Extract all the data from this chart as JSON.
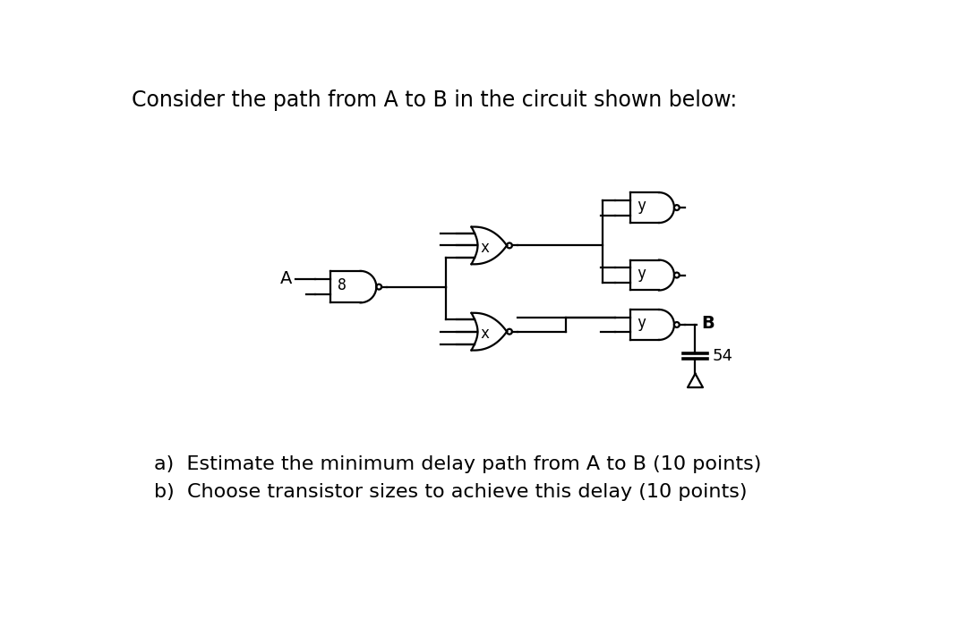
{
  "title_text": "Consider the path from A to B in the circuit shown below:",
  "question_a": "a)  Estimate the minimum delay path from A to B (10 points)",
  "question_b": "b)  Choose transistor sizes to achieve this delay (10 points)",
  "bg_color": "#ffffff",
  "line_color": "#000000",
  "font_size_title": 17,
  "font_size_labels": 16,
  "font_size_gate_labels": 12
}
